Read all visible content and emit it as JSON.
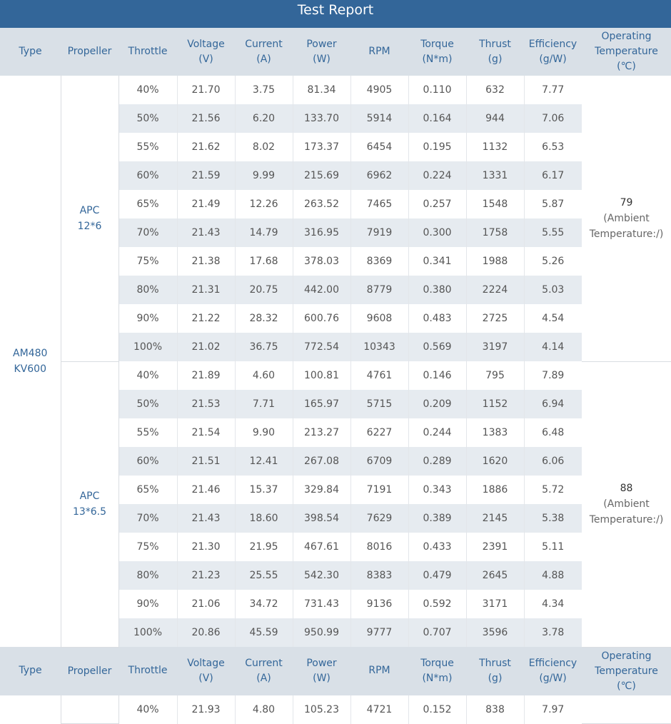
{
  "report": {
    "title": "Test Report",
    "headers": {
      "type": "Type",
      "propeller": "Propeller",
      "throttle": "Throttle",
      "voltage": [
        "Voltage",
        "(V)"
      ],
      "current": [
        "Current",
        "(A)"
      ],
      "power": [
        "Power",
        "(W)"
      ],
      "rpm": "RPM",
      "torque": [
        "Torque",
        "(N*m)"
      ],
      "thrust": [
        "Thrust",
        "(g)"
      ],
      "efficiency": [
        "Efficiency",
        "(g/W)"
      ],
      "temperature": [
        "Operating",
        "Temperature",
        "(℃)"
      ]
    },
    "motor": [
      "AM480",
      "KV600"
    ],
    "groups": [
      {
        "propeller": [
          "APC",
          "12*6"
        ],
        "temp_value": "79",
        "temp_note": [
          "(Ambient",
          "Temperature:/)"
        ],
        "rows": [
          [
            "40%",
            "21.70",
            "3.75",
            "81.34",
            "4905",
            "0.110",
            "632",
            "7.77"
          ],
          [
            "50%",
            "21.56",
            "6.20",
            "133.70",
            "5914",
            "0.164",
            "944",
            "7.06"
          ],
          [
            "55%",
            "21.62",
            "8.02",
            "173.37",
            "6454",
            "0.195",
            "1132",
            "6.53"
          ],
          [
            "60%",
            "21.59",
            "9.99",
            "215.69",
            "6962",
            "0.224",
            "1331",
            "6.17"
          ],
          [
            "65%",
            "21.49",
            "12.26",
            "263.52",
            "7465",
            "0.257",
            "1548",
            "5.87"
          ],
          [
            "70%",
            "21.43",
            "14.79",
            "316.95",
            "7919",
            "0.300",
            "1758",
            "5.55"
          ],
          [
            "75%",
            "21.38",
            "17.68",
            "378.03",
            "8369",
            "0.341",
            "1988",
            "5.26"
          ],
          [
            "80%",
            "21.31",
            "20.75",
            "442.00",
            "8779",
            "0.380",
            "2224",
            "5.03"
          ],
          [
            "90%",
            "21.22",
            "28.32",
            "600.76",
            "9608",
            "0.483",
            "2725",
            "4.54"
          ],
          [
            "100%",
            "21.02",
            "36.75",
            "772.54",
            "10343",
            "0.569",
            "3197",
            "4.14"
          ]
        ]
      },
      {
        "propeller": [
          "APC",
          "13*6.5"
        ],
        "temp_value": "88",
        "temp_note": [
          "(Ambient",
          "Temperature:/)"
        ],
        "rows": [
          [
            "40%",
            "21.89",
            "4.60",
            "100.81",
            "4761",
            "0.146",
            "795",
            "7.89"
          ],
          [
            "50%",
            "21.53",
            "7.71",
            "165.97",
            "5715",
            "0.209",
            "1152",
            "6.94"
          ],
          [
            "55%",
            "21.54",
            "9.90",
            "213.27",
            "6227",
            "0.244",
            "1383",
            "6.48"
          ],
          [
            "60%",
            "21.51",
            "12.41",
            "267.08",
            "6709",
            "0.289",
            "1620",
            "6.06"
          ],
          [
            "65%",
            "21.46",
            "15.37",
            "329.84",
            "7191",
            "0.343",
            "1886",
            "5.72"
          ],
          [
            "70%",
            "21.43",
            "18.60",
            "398.54",
            "7629",
            "0.389",
            "2145",
            "5.38"
          ],
          [
            "75%",
            "21.30",
            "21.95",
            "467.61",
            "8016",
            "0.433",
            "2391",
            "5.11"
          ],
          [
            "80%",
            "21.23",
            "25.55",
            "542.30",
            "8383",
            "0.479",
            "2645",
            "4.88"
          ],
          [
            "90%",
            "21.06",
            "34.72",
            "731.43",
            "9136",
            "0.592",
            "3171",
            "4.34"
          ],
          [
            "100%",
            "20.86",
            "45.59",
            "950.99",
            "9777",
            "0.707",
            "3596",
            "3.78"
          ]
        ]
      }
    ],
    "partial_row": [
      "40%",
      "21.93",
      "4.80",
      "105.23",
      "4721",
      "0.152",
      "838",
      "7.97"
    ]
  }
}
